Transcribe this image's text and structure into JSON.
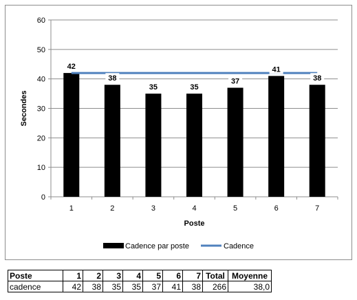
{
  "chart_data": {
    "type": "bar",
    "categories": [
      "1",
      "2",
      "3",
      "4",
      "5",
      "6",
      "7"
    ],
    "series": [
      {
        "name": "Cadence par poste",
        "type": "bar",
        "color": "#000000",
        "values": [
          42,
          38,
          35,
          35,
          37,
          41,
          38
        ]
      },
      {
        "name": "Cadence",
        "type": "line",
        "color": "#4f81bd",
        "values": [
          42,
          42,
          42,
          42,
          42,
          42,
          42
        ]
      }
    ],
    "xlabel": "Poste",
    "ylabel": "Secondes",
    "ylim": [
      0,
      60
    ],
    "yticks": [
      0,
      10,
      20,
      30,
      40,
      50,
      60
    ],
    "grid": true,
    "legend": "bottom"
  },
  "table": {
    "header": [
      "Poste",
      "1",
      "2",
      "3",
      "4",
      "5",
      "6",
      "7",
      "Total",
      "Moyenne"
    ],
    "row": [
      "cadence",
      "42",
      "38",
      "35",
      "35",
      "37",
      "41",
      "38",
      "266",
      "38,0"
    ]
  }
}
